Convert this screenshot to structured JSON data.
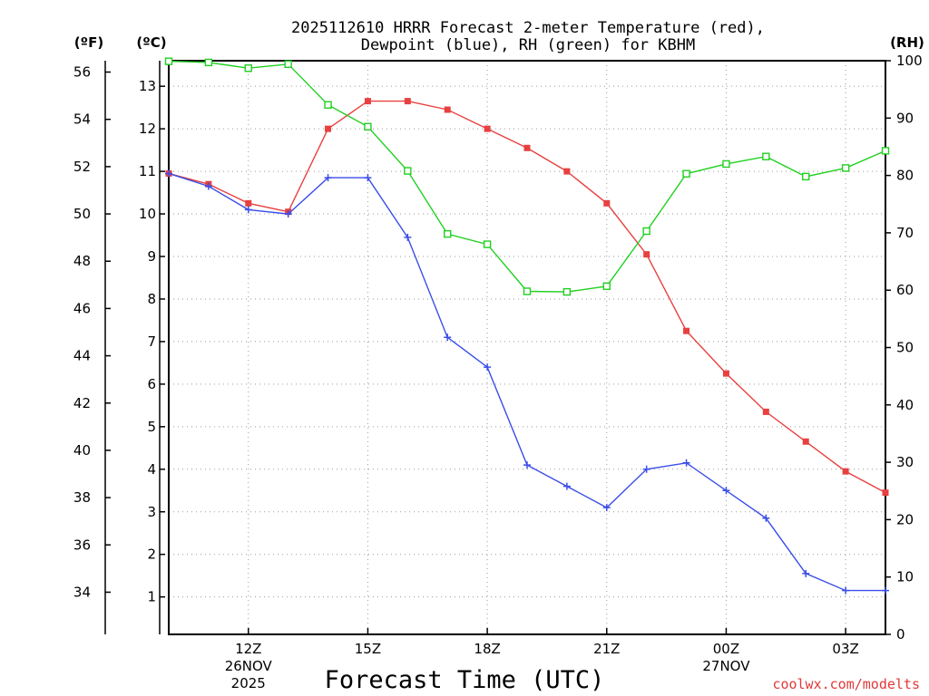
{
  "chart_data": {
    "type": "line",
    "title_line1": "2025112610 HRRR Forecast 2-meter Temperature (red),",
    "title_line2": "Dewpoint (blue), RH (green) for KBHM",
    "xlabel": "Forecast Time (UTC)",
    "credit": "coolwx.com/modelts",
    "unit_labels": {
      "fahrenheit": "(ºF)",
      "celsius": "(ºC)",
      "rh": "(RH)"
    },
    "x_hours": [
      10,
      11,
      12,
      13,
      14,
      15,
      16,
      17,
      18,
      19,
      20,
      21,
      22,
      23,
      24,
      25,
      26,
      27,
      28
    ],
    "xlim": [
      10,
      28
    ],
    "x_ticks": [
      {
        "hour": 12,
        "label": "12Z",
        "date": "26NOV",
        "year": "2025"
      },
      {
        "hour": 15,
        "label": "15Z",
        "date": "",
        "year": ""
      },
      {
        "hour": 18,
        "label": "18Z",
        "date": "",
        "year": ""
      },
      {
        "hour": 21,
        "label": "21Z",
        "date": "",
        "year": ""
      },
      {
        "hour": 24,
        "label": "00Z",
        "date": "27NOV",
        "year": ""
      },
      {
        "hour": 27,
        "label": "03Z",
        "date": "",
        "year": ""
      }
    ],
    "celsius_axis": {
      "ticks": [
        "1",
        "2",
        "3",
        "4",
        "5",
        "6",
        "7",
        "8",
        "9",
        "10",
        "11",
        "12",
        "13"
      ],
      "ylim": [
        0.12,
        13.6
      ]
    },
    "fahrenheit_axis": {
      "ticks": [
        "34",
        "36",
        "38",
        "40",
        "42",
        "44",
        "46",
        "48",
        "50",
        "52",
        "54",
        "56"
      ]
    },
    "rh_axis": {
      "ticks": [
        "0",
        "10",
        "20",
        "30",
        "40",
        "50",
        "60",
        "70",
        "80",
        "90",
        "100"
      ],
      "ylim": [
        0,
        100
      ]
    },
    "series": [
      {
        "name": "Temperature",
        "units": "C",
        "color": "#e84040",
        "marker": "filled-square",
        "values": [
          10.95,
          10.7,
          10.25,
          10.05,
          12.0,
          12.65,
          12.65,
          12.45,
          12.0,
          11.55,
          11.0,
          10.25,
          9.05,
          7.25,
          6.25,
          5.35,
          4.65,
          3.95,
          3.45
        ]
      },
      {
        "name": "Dewpoint",
        "units": "C",
        "color": "#3a4ee8",
        "marker": "plus",
        "values": [
          10.95,
          10.65,
          10.1,
          10.0,
          10.85,
          10.85,
          9.45,
          7.1,
          6.4,
          4.1,
          3.6,
          3.1,
          4.0,
          4.15,
          3.5,
          2.85,
          1.55,
          1.15,
          1.15
        ]
      },
      {
        "name": "RH",
        "units": "%",
        "color": "#20d020",
        "marker": "open-square",
        "values": [
          99.9,
          99.7,
          98.7,
          99.4,
          92.3,
          88.5,
          80.8,
          69.8,
          68.0,
          59.8,
          59.7,
          60.7,
          70.3,
          80.3,
          82.0,
          83.3,
          79.8,
          81.3,
          84.3
        ]
      }
    ]
  }
}
